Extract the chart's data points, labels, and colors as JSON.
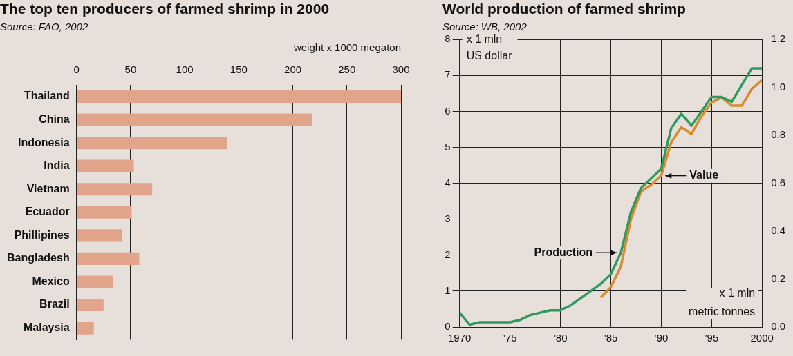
{
  "chart_data": [
    {
      "type": "bar",
      "orientation": "horizontal",
      "title": "The top ten producers of farmed shrimp in 2000",
      "subtitle": "Source: FAO, 2002",
      "xlabel": "weight x 1000 megaton",
      "categories": [
        "Thailand",
        "China",
        "Indonesia",
        "India",
        "Vietnam",
        "Ecuador",
        "Phillipines",
        "Bangladesh",
        "Mexico",
        "Brazil",
        "Malaysia"
      ],
      "values": [
        300,
        218,
        139,
        53,
        70,
        51,
        42,
        58,
        34,
        25,
        16
      ],
      "color": "#e3a48c",
      "xlim": [
        0,
        300
      ],
      "xticks": [
        0,
        50,
        100,
        150,
        200,
        250,
        300
      ],
      "grid": "x",
      "legend": false
    },
    {
      "type": "line",
      "title": "World production of farmed shrimp",
      "subtitle": "Source: WB, 2002",
      "ylabel": "x 1 mln US dollar",
      "y2label": "x 1 mln metric tonnes",
      "series": [
        {
          "color": "#2e9a5e",
          "axis": "y2",
          "x": [
            1970,
            1971,
            1972,
            1973,
            1974,
            1975,
            1976,
            1977,
            1978,
            1979,
            1980,
            1981,
            1982,
            1983,
            1984,
            1985,
            1986,
            1987,
            1988,
            1989,
            1990,
            1991,
            1992,
            1993,
            1994,
            1995,
            1996,
            1997,
            1998,
            1999,
            2000
          ],
          "values": [
            0.06,
            0.01,
            0.02,
            0.02,
            0.02,
            0.02,
            0.03,
            0.05,
            0.06,
            0.07,
            0.07,
            0.09,
            0.12,
            0.15,
            0.18,
            0.22,
            0.31,
            0.48,
            0.58,
            0.62,
            0.66,
            0.83,
            0.89,
            0.84,
            0.9,
            0.96,
            0.96,
            0.94,
            1.01,
            1.08,
            1.08
          ]
        },
        {
          "color": "#d98a2c",
          "x": [
            1984,
            1985,
            1986,
            1987,
            1988,
            1989,
            1990,
            1991,
            1992,
            1993,
            1994,
            1995,
            1996,
            1997,
            1998,
            1999,
            2000
          ],
          "values": [
            0.82,
            1.11,
            1.68,
            3.0,
            3.77,
            3.96,
            4.21,
            5.14,
            5.56,
            5.37,
            5.86,
            6.25,
            6.39,
            6.16,
            6.16,
            6.63,
            6.87
          ]
        }
      ],
      "xlim": [
        1970,
        2000
      ],
      "xticks": [
        1970,
        {
          "value": 1975,
          "label": "’75"
        },
        {
          "value": 1980,
          "label": "’80"
        },
        {
          "value": 1985,
          "label": "’85"
        },
        {
          "value": 1990,
          "label": "’90"
        },
        {
          "value": 1995,
          "label": "’95"
        },
        2000
      ],
      "ylim": [
        0,
        8
      ],
      "yticks": [
        0,
        1,
        2,
        3,
        4,
        5,
        6,
        7,
        8
      ],
      "y2lim": [
        0,
        1.2
      ],
      "y2ticks": [
        {
          "value": 0,
          "label": "0.0"
        },
        0.2,
        0.4,
        0.6,
        0.8,
        {
          "value": 1,
          "label": "1.0"
        },
        1.2
      ],
      "annotations": [
        {
          "text": "Production",
          "x": 1986,
          "y": 2.07
        },
        {
          "text": "Value",
          "x": 1990,
          "y": 4.21
        }
      ],
      "grid": true,
      "legend": false,
      "marker": "none",
      "line_style": "solid"
    }
  ]
}
